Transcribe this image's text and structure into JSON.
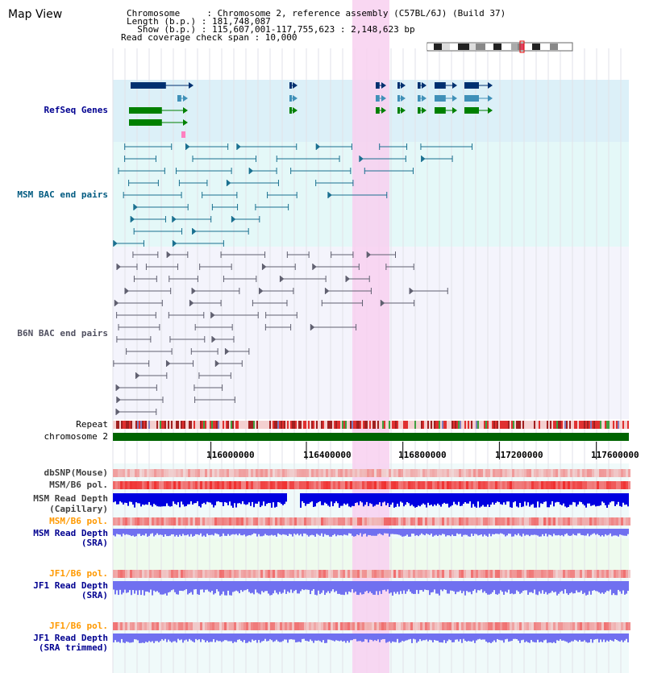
{
  "header": {
    "title": "Map View",
    "info_lines": [
      "Chromosome     : Chromosome 2, reference assembly (C57BL/6J) (Build 37)",
      "Length (b.p.) : 181,748,087",
      "  Show (b.p.) : 115,607,001-117,755,623 : 2,148,623 bp",
      "Read coverage check span : 10,000"
    ]
  },
  "tracks": {
    "refseq": "RefSeq Genes",
    "msm_bac": "MSM BAC end pairs",
    "b6n_bac": "B6N BAC end pairs",
    "repeat": "Repeat",
    "chromosome": "chromosome 2",
    "dbsnp": "dbSNP(Mouse)",
    "msm_b6_pol_1": "MSM/B6 pol.",
    "msm_read_depth_cap_1": "MSM Read Depth",
    "msm_read_depth_cap_2": "(Capillary)",
    "msm_b6_pol_2": "MSM/B6 pol.",
    "msm_read_depth_sra_1": "MSM Read Depth",
    "msm_read_depth_sra_2": "(SRA)",
    "jf1_b6_pol_1": "JF1/B6 pol.",
    "jf1_read_depth_sra_1": "JF1 Read Depth",
    "jf1_read_depth_sra_2": "(SRA)",
    "jf1_b6_pol_2": "JF1/B6 pol.",
    "jf1_read_depth_trim_1": "JF1 Read Depth",
    "jf1_read_depth_trim_2": "(SRA trimmed)"
  },
  "axis": {
    "ticks": [
      "116000000",
      "116400000",
      "116800000",
      "117200000",
      "117600000"
    ]
  },
  "colors": {
    "refseq_bg": "#dcf0f8",
    "msm_bac_bg": "#e4f8f8",
    "b6n_bac_bg": "#f4f4fc",
    "highlight": "#f8d0f0",
    "chromosome": "#006400",
    "msm_color": "#0050a0",
    "msm_label": "#005a80",
    "b6n_color": "#505060",
    "depth_blue": "#0000e0",
    "depth_light": "#7070f0",
    "orange": "#ff9900",
    "navy": "#000090"
  }
}
